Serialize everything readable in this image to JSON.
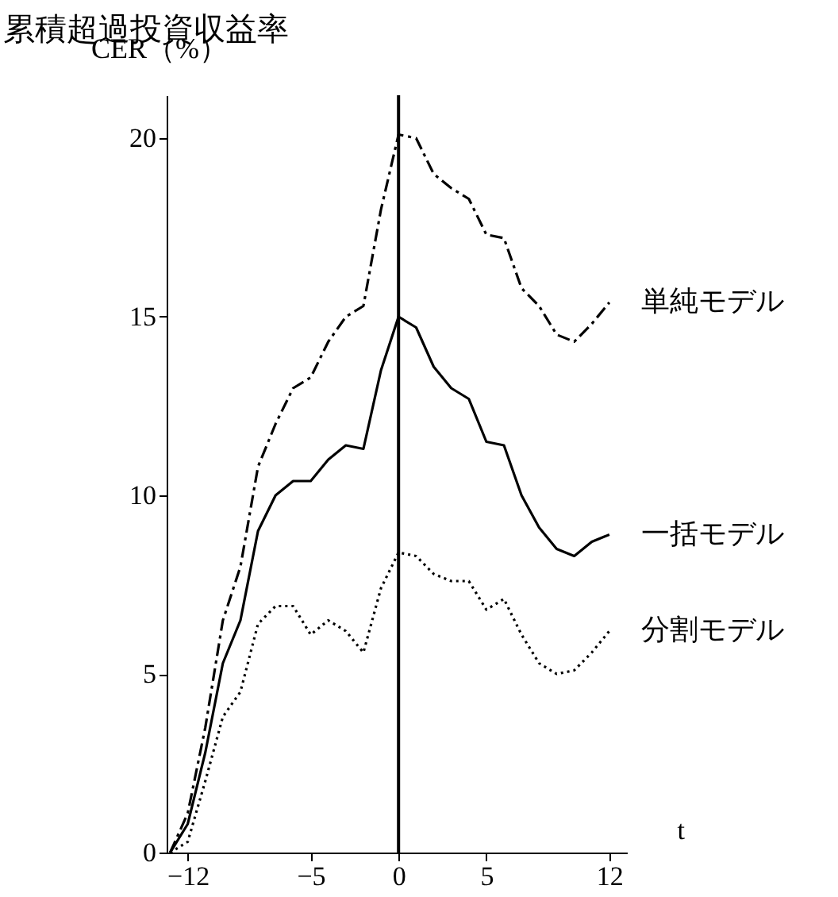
{
  "chart_data": {
    "type": "line",
    "title": "累積超過投資収益率",
    "ylabel": "CER（%）",
    "xlabel": "t",
    "x": [
      -13,
      -12,
      -11,
      -10,
      -9,
      -8,
      -7,
      -6,
      -5,
      -4,
      -3,
      -2,
      -1,
      0,
      1,
      2,
      3,
      4,
      5,
      6,
      7,
      8,
      9,
      10,
      11,
      12
    ],
    "series": [
      {
        "name": "単純モデル",
        "color": "#000000",
        "line_style": "dashed",
        "values": [
          0,
          1.1,
          3.5,
          6.5,
          8,
          10.8,
          12,
          13,
          13.3,
          14.3,
          15,
          15.3,
          18,
          20.1,
          20,
          19,
          18.6,
          18.3,
          17.3,
          17.2,
          15.8,
          15.3,
          14.5,
          14.3,
          14.8,
          15.4
        ]
      },
      {
        "name": "一括モデル",
        "color": "#000000",
        "line_style": "solid",
        "values": [
          0,
          0.8,
          2.8,
          5.3,
          6.5,
          9,
          10,
          10.4,
          10.4,
          11,
          11.4,
          11.3,
          13.5,
          15,
          14.7,
          13.6,
          13,
          12.7,
          11.5,
          11.4,
          10,
          9.1,
          8.5,
          8.3,
          8.7,
          8.9
        ]
      },
      {
        "name": "分割モデル",
        "color": "#000000",
        "line_style": "dotted",
        "values": [
          0,
          0.3,
          2,
          3.8,
          4.5,
          6.4,
          6.9,
          6.9,
          6.1,
          6.5,
          6.2,
          5.6,
          7.4,
          8.4,
          8.3,
          7.8,
          7.6,
          7.6,
          6.8,
          7.1,
          6.1,
          5.3,
          5,
          5.1,
          5.6,
          6.2
        ]
      }
    ],
    "xlim": [
      -13.2,
      13
    ],
    "xticks": [
      -12,
      -5,
      0,
      5,
      12
    ],
    "ylim": [
      0,
      21.2
    ],
    "yticks": [
      0,
      5,
      10,
      15,
      20
    ],
    "ref_lines": [
      {
        "axis": "x",
        "value": 0,
        "color": "#000000"
      }
    ],
    "grid": false,
    "marker": "none"
  }
}
